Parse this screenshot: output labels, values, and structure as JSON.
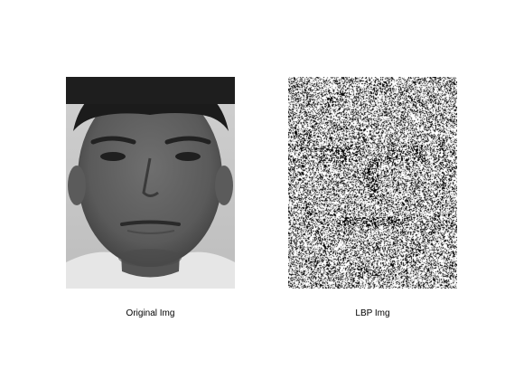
{
  "figure": {
    "panels": [
      {
        "caption": "Original Img"
      },
      {
        "caption": "LBP Img"
      }
    ],
    "colors": {
      "background": "#ffffff",
      "caption_text": "#000000"
    }
  }
}
